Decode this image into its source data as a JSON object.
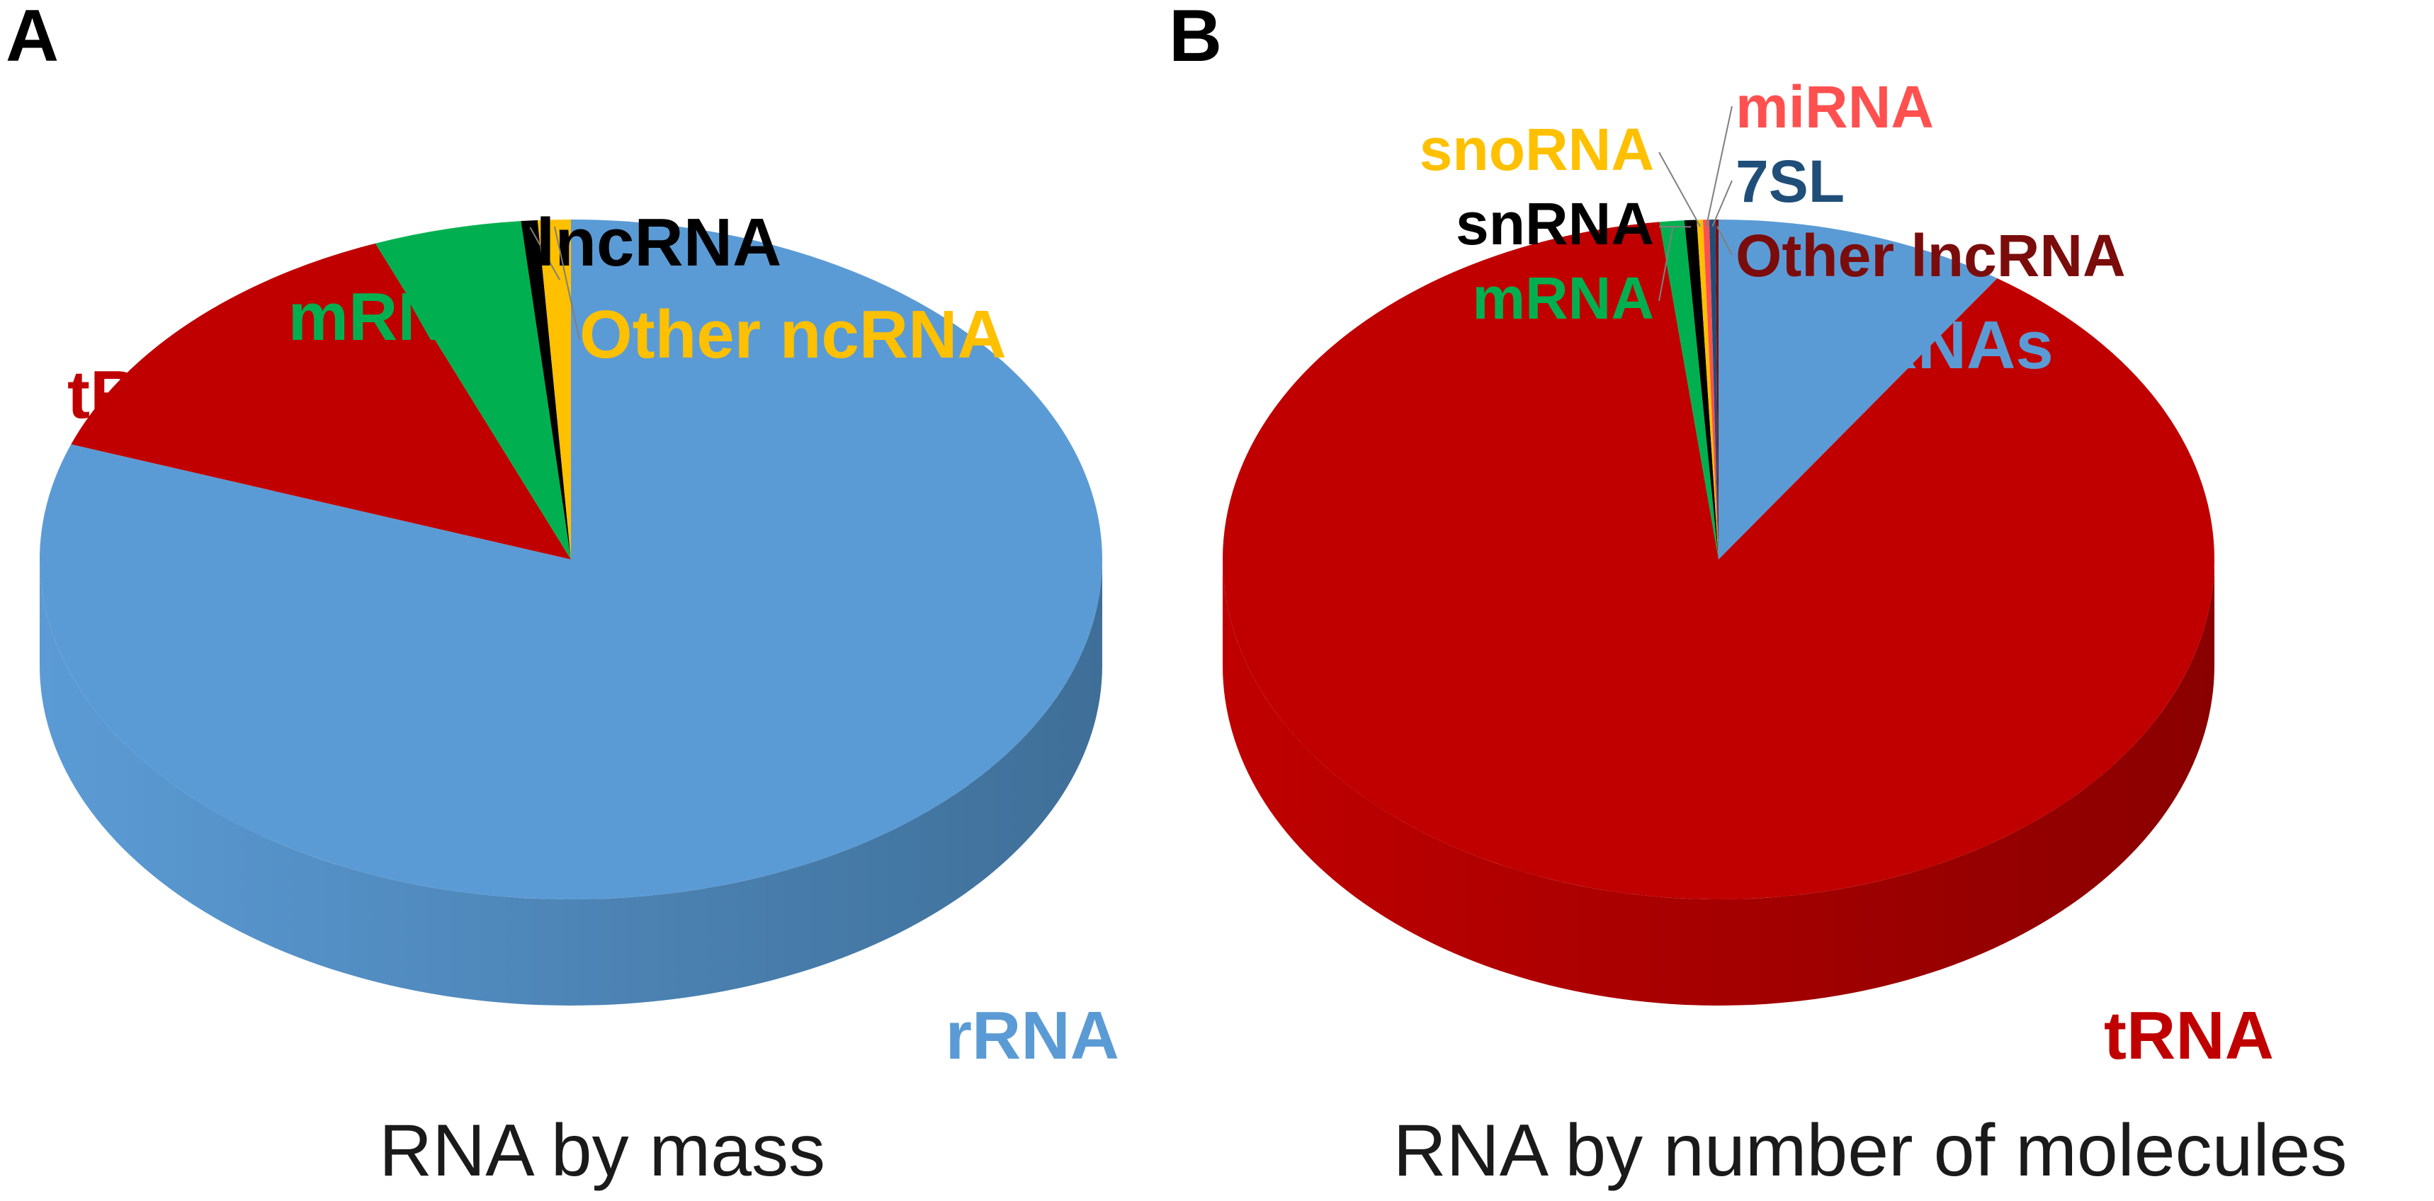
{
  "chart_data": [
    {
      "type": "pie",
      "panel": "A",
      "title": "RNA by mass",
      "slices": [
        {
          "label": "rRNA",
          "value": 80.5,
          "color": "#5b9bd5",
          "side_color": "#3f6f98",
          "label_color": "#5b9bd5"
        },
        {
          "label": "tRNA",
          "value": 13.5,
          "color": "#c00000",
          "side_color": "#8a0000",
          "label_color": "#c00000"
        },
        {
          "label": "mRNA",
          "value": 4.5,
          "color": "#00b050",
          "side_color": "#007a36",
          "label_color": "#00b050"
        },
        {
          "label": "lncRNA",
          "value": 0.5,
          "color": "#000000",
          "side_color": "#000000",
          "label_color": "#000000"
        },
        {
          "label": "Other ncRNA",
          "value": 1.0,
          "color": "#ffc000",
          "side_color": "#c79500",
          "label_color": "#ffc000"
        }
      ]
    },
    {
      "type": "pie",
      "panel": "B",
      "title": "RNA by number of molecules",
      "slices": [
        {
          "label": "rRNAs",
          "value": 9.5,
          "color": "#5b9bd5",
          "side_color": "#3f6f98",
          "label_color": "#5b9bd5"
        },
        {
          "label": "tRNA",
          "value": 88.6,
          "color": "#c00000",
          "side_color": "#8a0000",
          "label_color": "#c00000"
        },
        {
          "label": "mRNA",
          "value": 0.8,
          "color": "#00b050",
          "side_color": "#007a36",
          "label_color": "#00b050"
        },
        {
          "label": "snRNA",
          "value": 0.4,
          "color": "#000000",
          "side_color": "#000000",
          "label_color": "#000000"
        },
        {
          "label": "snoRNA",
          "value": 0.2,
          "color": "#ffc000",
          "side_color": "#c79500",
          "label_color": "#ffc000"
        },
        {
          "label": "miRNA",
          "value": 0.2,
          "color": "#ff5050",
          "side_color": "#c03a3a",
          "label_color": "#ff5050"
        },
        {
          "label": "7SL",
          "value": 0.2,
          "color": "#1f4e79",
          "side_color": "#143350",
          "label_color": "#1f4e79"
        },
        {
          "label": "Other lncRNA",
          "value": 0.1,
          "color": "#7b0c0c",
          "side_color": "#4e0707",
          "label_color": "#7b0c0c"
        }
      ]
    }
  ]
}
